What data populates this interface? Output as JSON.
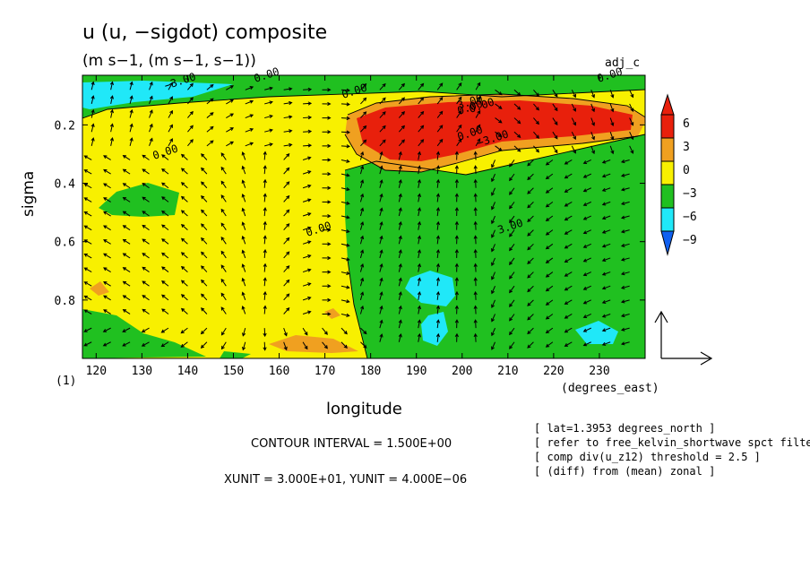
{
  "header": {
    "title": "u (u, −sigdot) composite",
    "units": "(m s−1, (m s−1, s−1))",
    "tag": "adj_c"
  },
  "footer": {
    "contour_interval": "CONTOUR INTERVAL = 1.500E+00",
    "vector_scale": "XUNIT = 3.000E+01, YUNIT = 4.000E−06",
    "notes": [
      "[ lat=1.3953 degrees_north ]",
      "[ refer to free_kelvin_shortwave spct filteri",
      "[ comp div(u_z12) threshold = 2.5 ]",
      "[ (diff) from (mean) zonal ]"
    ]
  },
  "colors": {
    "red": "#e8200c",
    "orange": "#f0a020",
    "yellow": "#f8f000",
    "green": "#20c020",
    "cyan": "#20e8f8",
    "blue": "#1060f0",
    "axis": "#000000"
  },
  "chart_data": {
    "type": "heatmap",
    "xlabel": "longitude",
    "xunit_label": "(degrees_east)",
    "ylabel": "sigma",
    "ysub_label": "(1)",
    "xlim": [
      117,
      240
    ],
    "ylim": [
      1.0,
      0.03
    ],
    "x_ticks": [
      "120",
      "130",
      "140",
      "150",
      "160",
      "170",
      "180",
      "190",
      "200",
      "210",
      "220",
      "230"
    ],
    "y_ticks": [
      "0.2",
      "0.4",
      "0.6",
      "0.8"
    ],
    "contour_labels": [
      "3.00",
      "0.00",
      "0.00",
      "−3.00",
      "−3.00",
      "0.00",
      "0.00",
      "0.00",
      "3.00",
      "0.00",
      "0.00",
      "0.00"
    ],
    "colorbar": {
      "levels": [
        "6",
        "3",
        "0",
        "−3",
        "−6",
        "−9"
      ]
    },
    "vector_field": "u, −sigdot",
    "features": [
      {
        "kind": "max",
        "lon_range": [
          182,
          236
        ],
        "sigma_range": [
          0.1,
          0.25
        ],
        "value": ">6"
      },
      {
        "kind": "min",
        "lon_range": [
          188,
          198
        ],
        "sigma_range": [
          0.74,
          0.83
        ],
        "value": "<-3"
      },
      {
        "kind": "min",
        "lon_range": [
          221,
          232
        ],
        "sigma_range": [
          0.92,
          0.98
        ],
        "value": "<-3"
      },
      {
        "kind": "min",
        "lon_range": [
          117,
          135
        ],
        "sigma_range": [
          0.03,
          0.12
        ],
        "value": "<-3"
      }
    ]
  }
}
